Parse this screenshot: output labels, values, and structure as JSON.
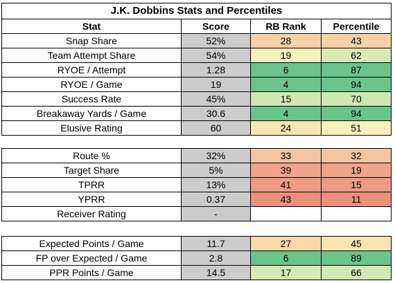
{
  "title": "J.K. Dobbins Stats and Percentiles",
  "headers": [
    "Stat",
    "Score",
    "RB Rank",
    "Percentile"
  ],
  "colors": {
    "score_bg": "#cccccc",
    "rank_green_dark": "#6bc48a",
    "green_mid": "#a4d79f",
    "green_light": "#cfe7b5",
    "yellow_light": "#f9f0c0",
    "orange_light": "#f8d1a6",
    "orange_mid": "#f4b69b",
    "red_mid": "#ef9e88",
    "red_dark": "#ea907e"
  },
  "sections": [
    {
      "rows": [
        {
          "stat": "Snap Share",
          "score": "52%",
          "rank": "28",
          "pct": "43",
          "rank_color": "#f8d1a6",
          "pct_color": "#f8d1a6"
        },
        {
          "stat": "Team Attempt Share",
          "score": "54%",
          "rank": "19",
          "pct": "62",
          "rank_color": "#f9f0c0",
          "pct_color": "#d8e9b8"
        },
        {
          "stat": "RYOE / Attempt",
          "score": "1.28",
          "rank": "6",
          "pct": "87",
          "rank_color": "#6bc48a",
          "pct_color": "#6bc48a"
        },
        {
          "stat": "RYOE / Game",
          "score": "19",
          "rank": "4",
          "pct": "94",
          "rank_color": "#6bc48a",
          "pct_color": "#6bc48a"
        },
        {
          "stat": "Success Rate",
          "score": "45%",
          "rank": "15",
          "pct": "70",
          "rank_color": "#cfe7b5",
          "pct_color": "#cfe7b5"
        },
        {
          "stat": "Breakaway Yards / Game",
          "score": "30.6",
          "rank": "4",
          "pct": "94",
          "rank_color": "#6bc48a",
          "pct_color": "#6bc48a"
        },
        {
          "stat": "Elusive Rating",
          "score": "60",
          "rank": "24",
          "pct": "51",
          "rank_color": "#f9e6b6",
          "pct_color": "#f9f0c0"
        }
      ]
    },
    {
      "rows": [
        {
          "stat": "Route %",
          "score": "32%",
          "rank": "33",
          "pct": "32",
          "rank_color": "#f6c3a3",
          "pct_color": "#f6c3a3"
        },
        {
          "stat": "Target Share",
          "score": "5%",
          "rank": "39",
          "pct": "19",
          "rank_color": "#efa58d",
          "pct_color": "#efa58d"
        },
        {
          "stat": "TPRR",
          "score": "13%",
          "rank": "41",
          "pct": "15",
          "rank_color": "#ec9c86",
          "pct_color": "#ec9c86"
        },
        {
          "stat": "YPRR",
          "score": "0.37",
          "rank": "43",
          "pct": "11",
          "rank_color": "#ea907e",
          "pct_color": "#ea907e"
        },
        {
          "stat": "Receiver Rating",
          "score": "-",
          "rank": "",
          "pct": "",
          "rank_color": "#ffffff",
          "pct_color": "#ffffff"
        }
      ]
    },
    {
      "rows": [
        {
          "stat": "Expected Points / Game",
          "score": "11.7",
          "rank": "27",
          "pct": "45",
          "rank_color": "#f8d9aa",
          "pct_color": "#f9e3b2"
        },
        {
          "stat": "FP over Expected / Game",
          "score": "2.8",
          "rank": "6",
          "pct": "89",
          "rank_color": "#6bc48a",
          "pct_color": "#6bc48a"
        },
        {
          "stat": "PPR Points / Game",
          "score": "14.5",
          "rank": "17",
          "pct": "66",
          "rank_color": "#d8e9b8",
          "pct_color": "#d3e8b6"
        }
      ]
    }
  ]
}
